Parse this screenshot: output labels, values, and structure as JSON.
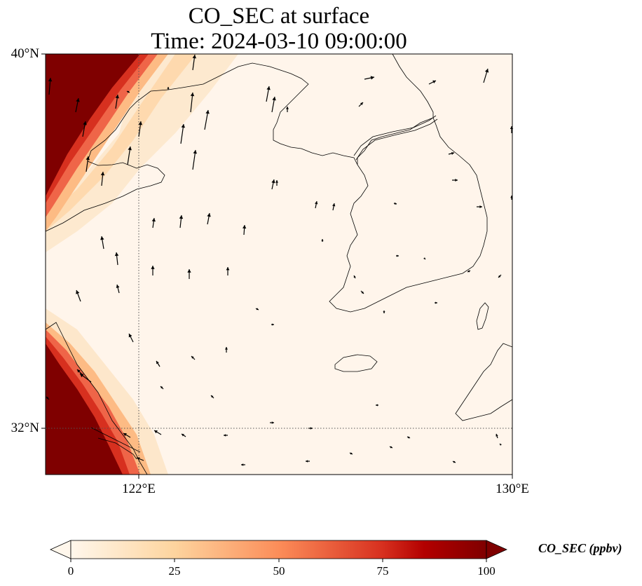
{
  "title": {
    "line1": "CO_SEC at surface",
    "line2": "Time: 2024-03-10 09:00:00"
  },
  "map": {
    "extent": {
      "lon_min": 119.5,
      "lon_max": 130,
      "lat_min": 30.8,
      "lat_max": 40
    },
    "lat_ticks": [
      {
        "value": 40,
        "label": "40°N"
      },
      {
        "value": 32,
        "label": "32°N"
      }
    ],
    "lon_ticks": [
      {
        "value": 122,
        "label": "122°E"
      },
      {
        "value": 130,
        "label": "130°E"
      }
    ],
    "gridlines": "dotted at 122°E and 32°N",
    "background_color": "#fff5eb",
    "plume_color": "#7f0000",
    "features": [
      "coastline",
      "wind-vectors",
      "co-concentration-field"
    ]
  },
  "colorbar": {
    "min": 0,
    "max": 100,
    "ticks": [
      {
        "value": 0,
        "label": "0"
      },
      {
        "value": 25,
        "label": "25"
      },
      {
        "value": 50,
        "label": "50"
      },
      {
        "value": 75,
        "label": "75"
      },
      {
        "value": 100,
        "label": "100"
      }
    ],
    "label": "CO_SEC (ppbv)",
    "colormap": "OrRd",
    "extend": "both",
    "stops": [
      "#fff7ec",
      "#fdd49e",
      "#fc8d59",
      "#d7301f",
      "#b30000",
      "#7f0000"
    ]
  }
}
